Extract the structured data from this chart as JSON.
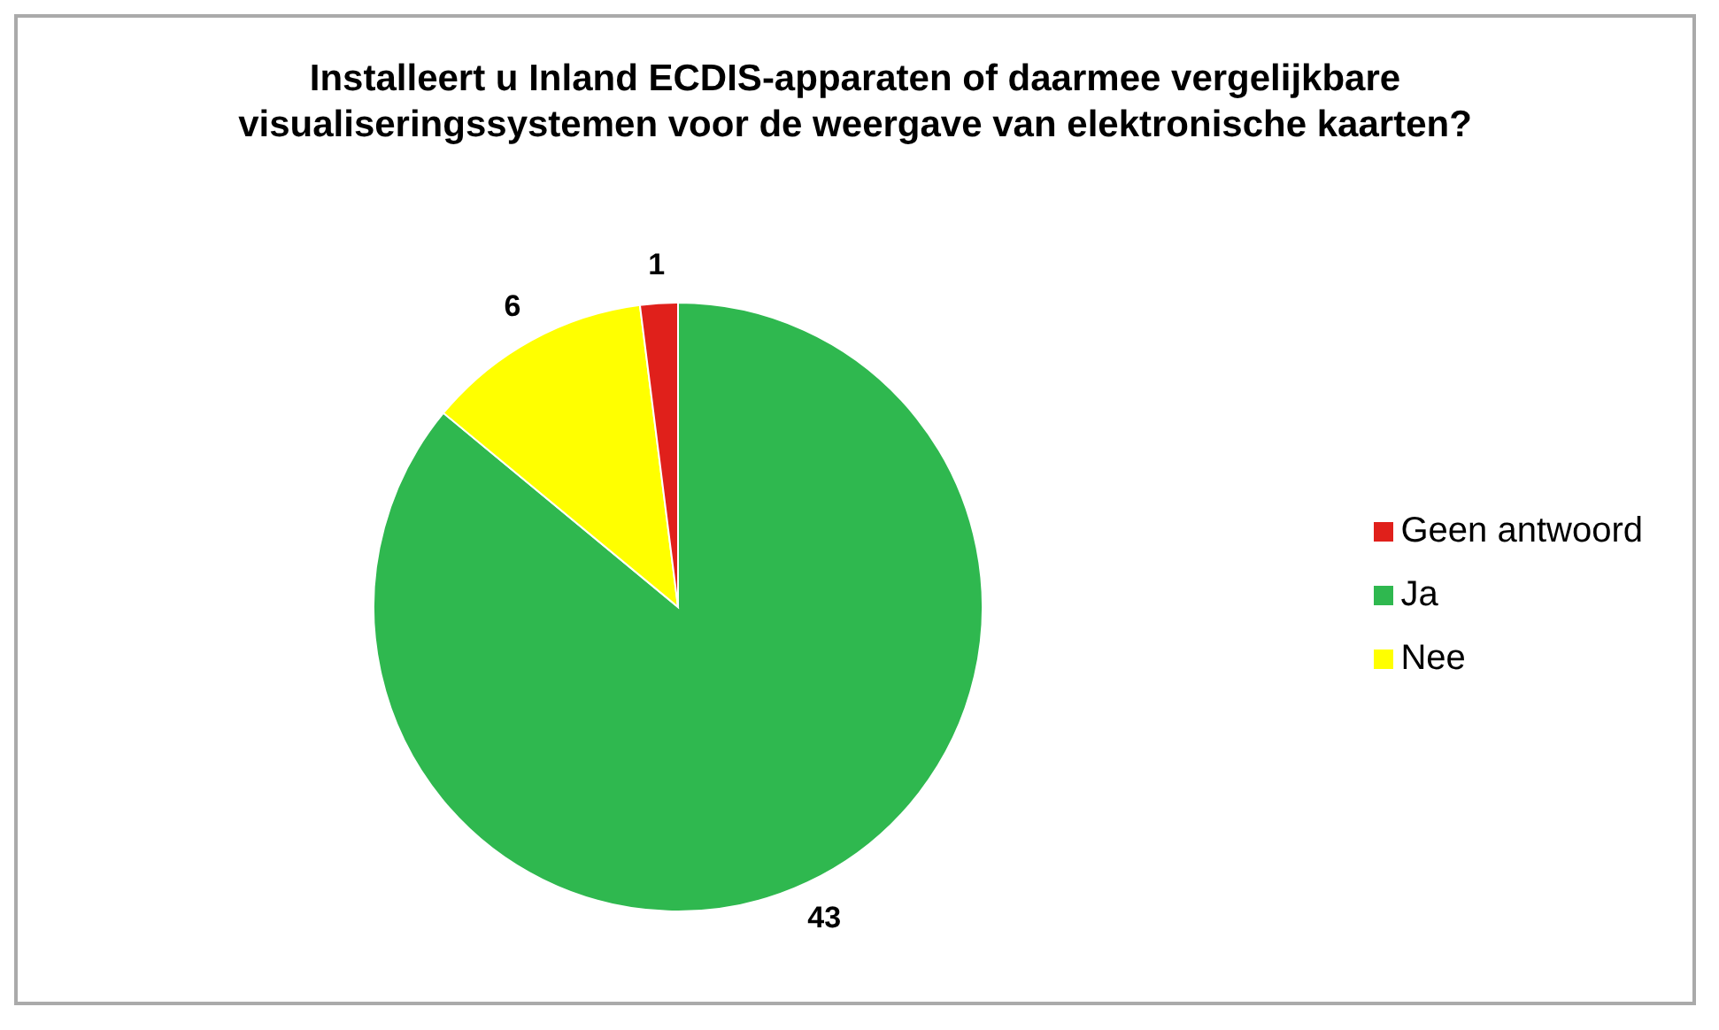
{
  "chart_data": {
    "type": "pie",
    "title": "Installeert u Inland ECDIS-apparaten of daarmee vergelijkbare visualiseringssystemen voor de weergave van elektronische kaarten?",
    "categories": [
      "Ja",
      "Nee",
      "Geen antwoord"
    ],
    "values": [
      43,
      6,
      1
    ],
    "colors": [
      "#2fb84f",
      "#ffff00",
      "#e0201b"
    ],
    "data_labels": true,
    "legend": "right"
  }
}
